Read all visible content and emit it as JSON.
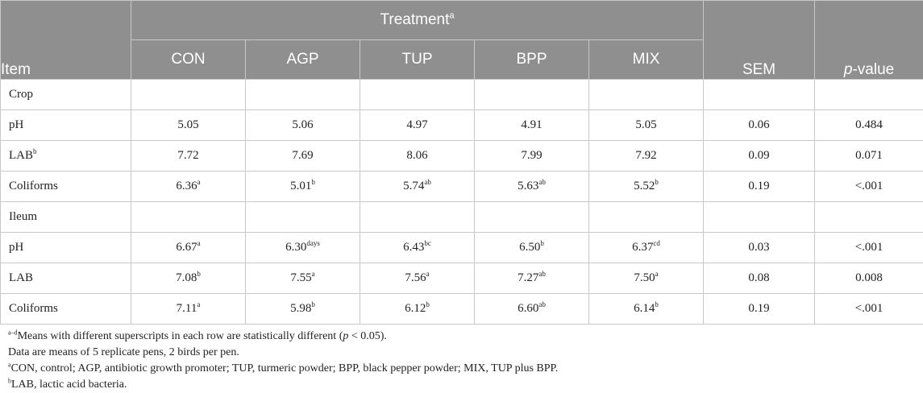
{
  "table": {
    "header": {
      "treatment": "Treatment",
      "treatment_sup": "a",
      "item": "Item",
      "columns": [
        "CON",
        "AGP",
        "TUP",
        "BPP",
        "MIX"
      ],
      "sem": "SEM",
      "pvalue_italic": "p",
      "pvalue_rest": "-value"
    },
    "rows": [
      {
        "section": "Crop"
      },
      {
        "label": "pH",
        "label_sup": "",
        "values": [
          "5.05",
          "5.06",
          "4.97",
          "4.91",
          "5.05"
        ],
        "sups": [
          "",
          "",
          "",
          "",
          ""
        ],
        "sem": "0.06",
        "p": "0.484"
      },
      {
        "label": "LAB",
        "label_sup": "b",
        "values": [
          "7.72",
          "7.69",
          "8.06",
          "7.99",
          "7.92"
        ],
        "sups": [
          "",
          "",
          "",
          "",
          ""
        ],
        "sem": "0.09",
        "p": "0.071"
      },
      {
        "label": "Coliforms",
        "label_sup": "",
        "values": [
          "6.36",
          "5.01",
          "5.74",
          "5.63",
          "5.52"
        ],
        "sups": [
          "a",
          "b",
          "ab",
          "ab",
          "b"
        ],
        "sem": "0.19",
        "p": "<.001"
      },
      {
        "section": "Ileum"
      },
      {
        "label": "pH",
        "label_sup": "",
        "values": [
          "6.67",
          "6.30",
          "6.43",
          "6.50",
          "6.37"
        ],
        "sups": [
          "a",
          "days",
          "bc",
          "b",
          "cd"
        ],
        "sem": "0.03",
        "p": "<.001"
      },
      {
        "label": "LAB",
        "label_sup": "",
        "values": [
          "7.08",
          "7.55",
          "7.56",
          "7.27",
          "7.50"
        ],
        "sups": [
          "b",
          "a",
          "a",
          "ab",
          "a"
        ],
        "sem": "0.08",
        "p": "0.008"
      },
      {
        "label": "Coliforms",
        "label_sup": "",
        "values": [
          "7.11",
          "5.98",
          "6.12",
          "6.60",
          "6.14"
        ],
        "sups": [
          "a",
          "b",
          "b",
          "ab",
          "b"
        ],
        "sem": "0.19",
        "p": "<.001"
      }
    ]
  },
  "footnotes": {
    "f1_sup": "a–d",
    "f1_text": "Means with different superscripts in each row are statistically different (",
    "f1_italic": "p",
    "f1_end": " < 0.05).",
    "f2": "Data are means of 5 replicate pens, 2 birds per pen.",
    "f3_sup": "a",
    "f3_text": "CON, control; AGP, antibiotic growth promoter; TUP, turmeric powder; BPP, black pepper powder; MIX, TUP plus BPP.",
    "f4_sup": "b",
    "f4_text": "LAB, lactic acid bacteria."
  }
}
